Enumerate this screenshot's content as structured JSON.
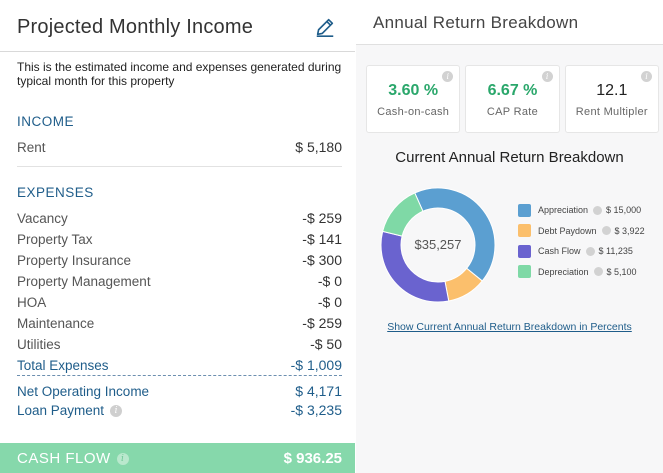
{
  "income_panel": {
    "title": "Projected Monthly Income",
    "description": "This is the estimated income and expenses generated during typical month for this property",
    "income_heading": "INCOME",
    "income_rows": [
      {
        "label": "Rent",
        "value": "$ 5,180"
      }
    ],
    "expenses_heading": "EXPENSES",
    "expense_rows": [
      {
        "label": "Vacancy",
        "value": "-$ 259"
      },
      {
        "label": "Property Tax",
        "value": "-$ 141"
      },
      {
        "label": "Property Insurance",
        "value": "-$ 300"
      },
      {
        "label": "Property Management",
        "value": "-$ 0"
      },
      {
        "label": "HOA",
        "value": "-$ 0"
      },
      {
        "label": "Maintenance",
        "value": "-$ 259"
      },
      {
        "label": "Utilities",
        "value": "-$ 50"
      }
    ],
    "total_expenses": {
      "label": "Total Expenses",
      "value": "-$ 1,009"
    },
    "net_operating_income": {
      "label": "Net Operating Income",
      "value": "$ 4,171"
    },
    "loan_payment": {
      "label": "Loan Payment",
      "value": "-$ 3,235"
    },
    "cash_flow": {
      "label": "CASH FLOW",
      "value": "$ 936.25"
    }
  },
  "return_panel": {
    "title": "Annual Return Breakdown",
    "metrics": [
      {
        "value": "3.60 %",
        "label": "Cash-on-cash"
      },
      {
        "value": "6.67 %",
        "label": "CAP Rate"
      },
      {
        "value": "12.1",
        "label": "Rent Multipler"
      }
    ],
    "breakdown_title": "Current Annual Return Breakdown",
    "link_text": "Show Current Annual Return Breakdown in Percents"
  },
  "chart_data": {
    "type": "pie",
    "center_label": "$35,257",
    "categories": [
      "Appreciation",
      "Debt Paydown",
      "Cash Flow",
      "Depreciation"
    ],
    "values": [
      15000,
      3922,
      11235,
      5100
    ],
    "value_labels": [
      "$ 15,000",
      "$ 3,922",
      "$ 11,235",
      "$ 5,100"
    ],
    "colors": [
      "#5b9fd1",
      "#fbbf6c",
      "#6a63cf",
      "#7fd9a6"
    ],
    "legend_placement": "right"
  }
}
